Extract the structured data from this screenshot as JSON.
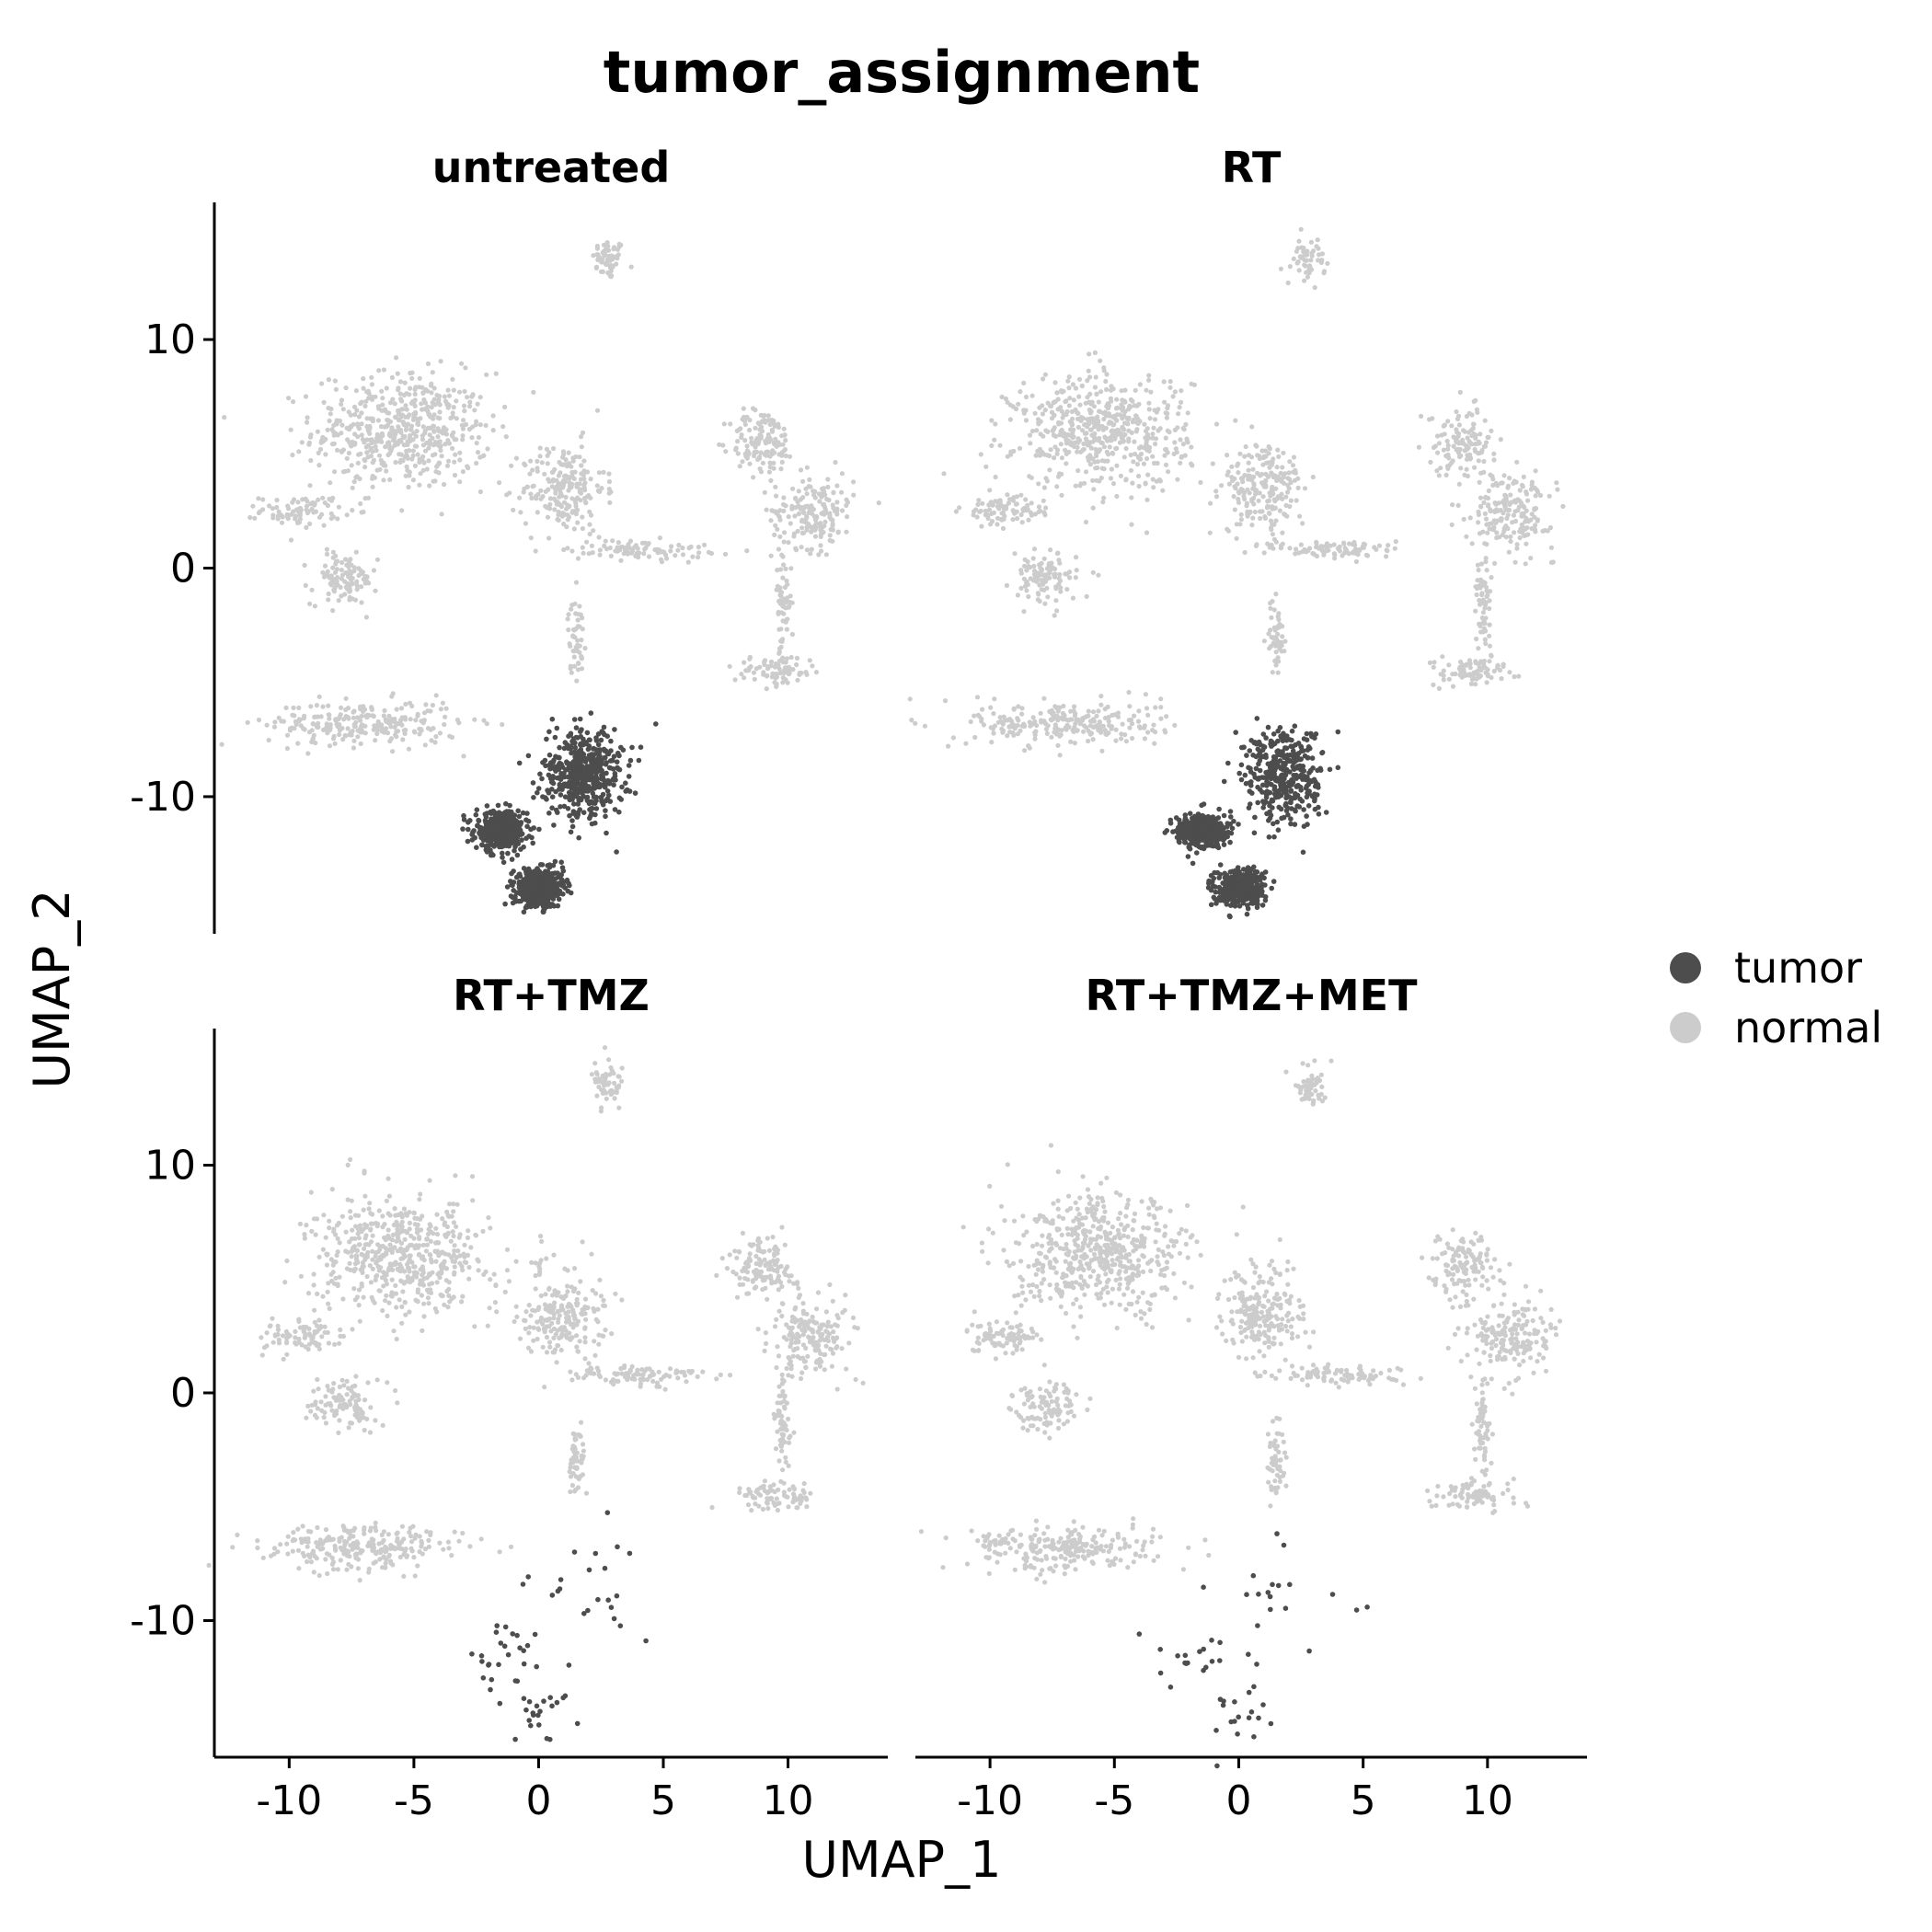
{
  "chart_data": {
    "type": "scatter",
    "title": "tumor_assignment",
    "xlabel": "UMAP_1",
    "ylabel": "UMAP_2",
    "xlim": [
      -13,
      14
    ],
    "ylim": [
      -16,
      16
    ],
    "xticks": [
      -10,
      -5,
      0,
      5,
      10
    ],
    "yticks": [
      -10,
      0,
      10
    ],
    "grid": false,
    "legend_position": "right",
    "legend": [
      {
        "label": "tumor",
        "color": "#4d4d4d"
      },
      {
        "label": "normal",
        "color": "#cccccc"
      }
    ],
    "facets": [
      "untreated",
      "RT",
      "RT+TMZ",
      "RT+TMZ+MET"
    ],
    "clusters": {
      "normal": [
        {
          "name": "top",
          "cx": 2.8,
          "cy": 13.5,
          "rx": 0.6,
          "ry": 0.8
        },
        {
          "name": "big-left-upper",
          "cx": -5.5,
          "cy": 6.0,
          "rx": 3.2,
          "ry": 2.3
        },
        {
          "name": "left-arm",
          "cx": -9.5,
          "cy": 2.5,
          "rx": 1.5,
          "ry": 0.6
        },
        {
          "name": "left-lower",
          "cx": -7.8,
          "cy": -0.5,
          "rx": 1.2,
          "ry": 1.0
        },
        {
          "name": "center-branch",
          "cx": 1.0,
          "cy": 3.5,
          "rx": 1.5,
          "ry": 1.8
        },
        {
          "name": "right-upper",
          "cx": 9.0,
          "cy": 5.5,
          "rx": 1.2,
          "ry": 1.3
        },
        {
          "name": "right-lobe",
          "cx": 11.0,
          "cy": 2.5,
          "rx": 1.5,
          "ry": 1.5
        },
        {
          "name": "right-stem",
          "cx": 9.8,
          "cy": -1.5,
          "rx": 0.3,
          "ry": 2.0
        },
        {
          "name": "right-bottom",
          "cx": 9.5,
          "cy": -4.5,
          "rx": 1.5,
          "ry": 0.6
        },
        {
          "name": "lower-left-stream",
          "cx": -7.0,
          "cy": -6.8,
          "rx": 3.5,
          "ry": 0.9
        },
        {
          "name": "center-stream",
          "cx": 4.0,
          "cy": 0.8,
          "rx": 2.5,
          "ry": 0.4
        },
        {
          "name": "center-lower-stem",
          "cx": 1.5,
          "cy": -3.0,
          "rx": 0.3,
          "ry": 1.5
        }
      ],
      "tumor": [
        {
          "name": "tumor-upper",
          "cx": 1.8,
          "cy": -9.0,
          "rx": 1.6,
          "ry": 2.0
        },
        {
          "name": "tumor-left",
          "cx": -1.5,
          "cy": -11.5,
          "rx": 1.0,
          "ry": 0.8
        },
        {
          "name": "tumor-bottom",
          "cx": 0.0,
          "cy": -14.0,
          "rx": 1.0,
          "ry": 0.8
        }
      ]
    },
    "tumor_points_per_facet": [
      1400,
      1100,
      70,
      55
    ]
  }
}
